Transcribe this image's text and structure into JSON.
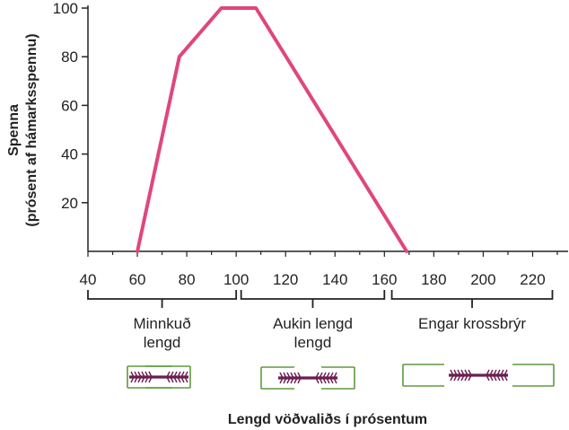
{
  "chart_data": {
    "type": "line",
    "ylabel_line1": "Spenna",
    "ylabel_line2": "(prósent af hámarksspennu)",
    "xlabel": "Lengd vöðvaliðs í prósentum",
    "xlim": [
      40,
      230
    ],
    "ylim": [
      0,
      100
    ],
    "x_ticks": [
      40,
      60,
      80,
      100,
      120,
      140,
      160,
      180,
      200,
      220
    ],
    "y_ticks": [
      20,
      40,
      60,
      80,
      100
    ],
    "series": [
      {
        "x": [
          60,
          77,
          94,
          108,
          169
        ],
        "y": [
          0,
          80,
          100,
          100,
          0
        ]
      }
    ],
    "line_color": "#e0467e",
    "grid": false,
    "regions": [
      {
        "label_lines": [
          "Minnkuð",
          "lengd"
        ],
        "x_start": 40,
        "x_end": 100
      },
      {
        "label_lines": [
          "Aukin lengd",
          "lengd"
        ],
        "x_start": 102,
        "x_end": 160
      },
      {
        "label_lines": [
          "Engar krossbrýr"
        ],
        "x_start": 163,
        "x_end": 228
      }
    ]
  },
  "colors": {
    "filament_thick": "#6b1f4f",
    "filament_thin": "#5e9a3e",
    "axis": "#222222"
  }
}
